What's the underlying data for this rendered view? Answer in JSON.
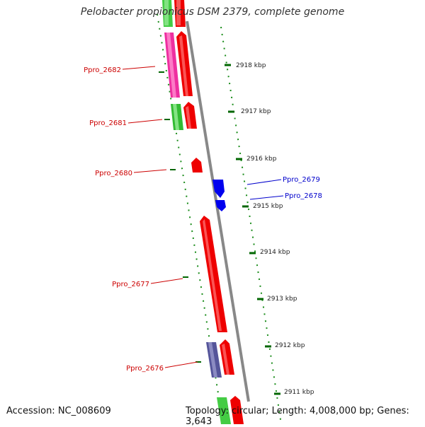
{
  "title": "Pelobacter propionicus DSM 2379, complete genome",
  "footer": {
    "accession": "Accession: NC_008609",
    "summary": "Topology: circular; Length: 4,008,000 bp; Genes: 3,643"
  },
  "colors": {
    "backbone": "#888888",
    "forward_label": "#cc0000",
    "reverse_label": "#0000cc",
    "tick": "#006600",
    "ruler_text": "#222222"
  },
  "ruler": {
    "ticks": [
      "2918 kbp",
      "2917 kbp",
      "2916 kbp",
      "2915 kbp",
      "2914 kbp",
      "2913 kbp",
      "2912 kbp",
      "2911 kbp"
    ]
  },
  "genes": [
    {
      "label": "Ppro_2682",
      "strand": "forward"
    },
    {
      "label": "Ppro_2681",
      "strand": "forward"
    },
    {
      "label": "Ppro_2680",
      "strand": "forward"
    },
    {
      "label": "Ppro_2679",
      "strand": "reverse"
    },
    {
      "label": "Ppro_2678",
      "strand": "reverse"
    },
    {
      "label": "Ppro_2677",
      "strand": "forward"
    },
    {
      "label": "Ppro_2676",
      "strand": "forward"
    }
  ]
}
